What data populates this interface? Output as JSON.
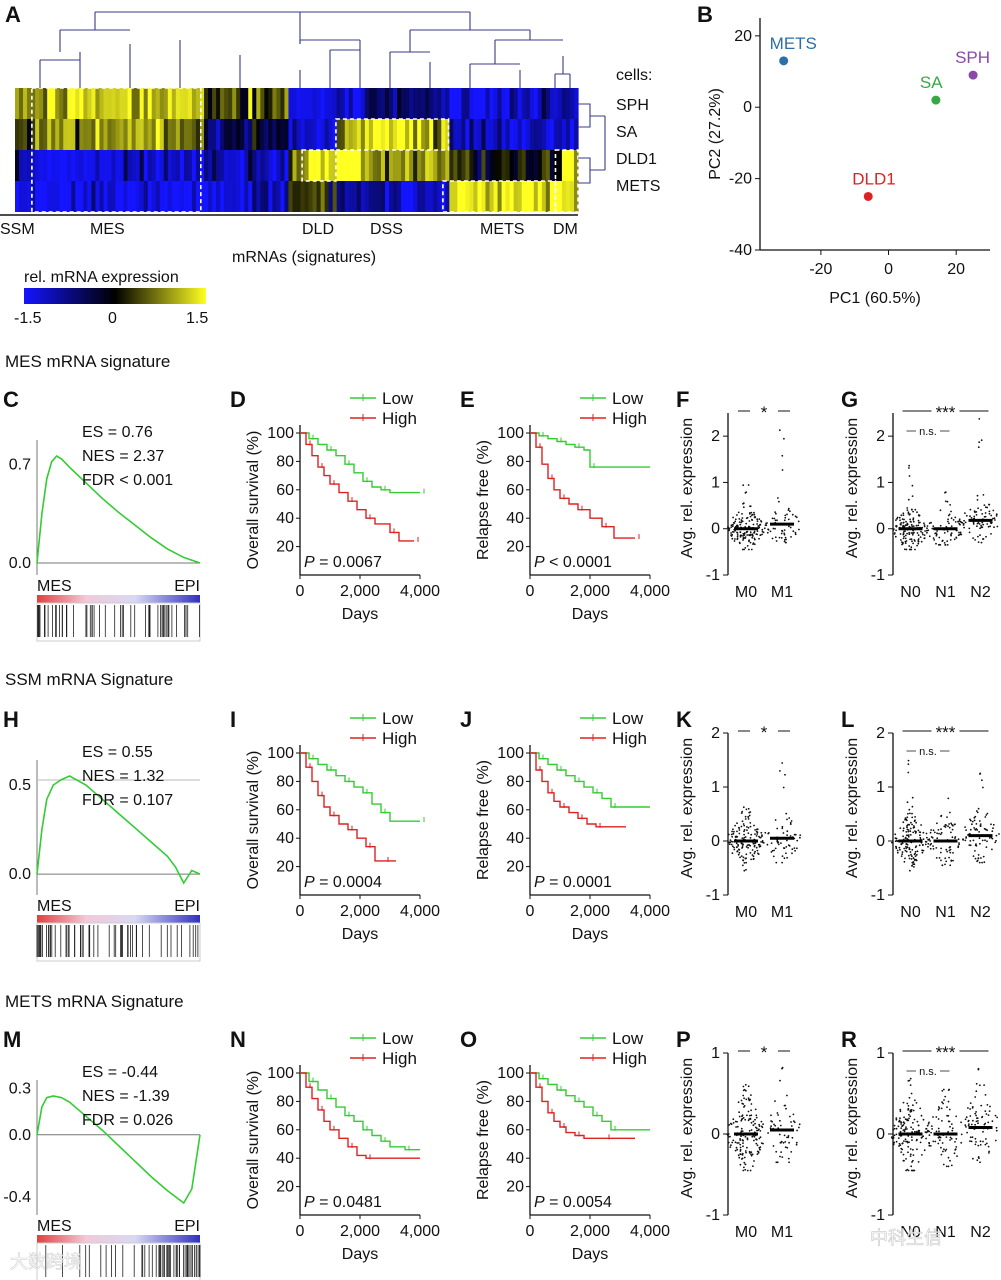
{
  "colors": {
    "low": "#33cc33",
    "high": "#dd2222",
    "heat_low": "#1414ff",
    "heat_mid": "#000000",
    "heat_high": "#ffff22",
    "dendro": "#3a3a8a"
  },
  "watermarks": [
    "大数跨境",
    "中科生信"
  ],
  "section_titles": [
    "MES mRNA signature",
    "SSM mRNA Signature",
    "METS mRNA Signature"
  ],
  "panel_a": {
    "letter": "A",
    "cells_label": "cells:",
    "rows": [
      "SPH",
      "SA",
      "DLD1",
      "METS"
    ],
    "signatures": [
      "SSM",
      "MES",
      "DLD",
      "DSS",
      "METS",
      "DM"
    ],
    "xlabel": "mRNAs (signatures)",
    "colorbar_title": "rel. mRNA expression",
    "colorbar_ticks": [
      "-1.5",
      "0",
      "1.5"
    ]
  },
  "panel_b": {
    "letter": "B",
    "chart_data": {
      "type": "scatter",
      "xlabel": "PC1 (60.5%)",
      "ylabel": "PC2 (27.2%)",
      "xlim": [
        -38,
        30
      ],
      "ylim": [
        -40,
        25
      ],
      "xticks": [
        "-20",
        "0",
        "20"
      ],
      "yticks": [
        "20",
        "0",
        "-20",
        "-40"
      ],
      "points": [
        {
          "label": "METS",
          "x": -31,
          "y": 13,
          "color": "#2a6fa8"
        },
        {
          "label": "SPH",
          "x": 25,
          "y": 9,
          "color": "#8a4aa8"
        },
        {
          "label": "SA",
          "x": 14,
          "y": 2,
          "color": "#33aa44"
        },
        {
          "label": "DLD1",
          "x": -6,
          "y": -25,
          "color": "#dd2222"
        }
      ]
    }
  },
  "gsea_panels": [
    {
      "letter": "C",
      "stats": [
        "ES = 0.76",
        "NES = 2.37",
        "FDR < 0.001"
      ],
      "yticks": [
        "0.7",
        "0.0"
      ],
      "left_label": "MES",
      "right_label": "EPI",
      "chart_data": {
        "type": "line",
        "x": [
          0,
          0.03,
          0.06,
          0.09,
          0.12,
          0.15,
          0.2,
          0.3,
          0.4,
          0.5,
          0.6,
          0.7,
          0.8,
          0.9,
          1.0
        ],
        "y": [
          0,
          0.35,
          0.6,
          0.72,
          0.76,
          0.74,
          0.68,
          0.57,
          0.46,
          0.36,
          0.27,
          0.18,
          0.1,
          0.04,
          0
        ]
      }
    },
    {
      "letter": "H",
      "stats": [
        "ES = 0.55",
        "NES = 1.32",
        "FDR = 0.107"
      ],
      "yticks": [
        "0.5",
        "0.0"
      ],
      "left_label": "MES",
      "right_label": "EPI",
      "chart_data": {
        "type": "line",
        "x": [
          0,
          0.03,
          0.06,
          0.1,
          0.15,
          0.2,
          0.3,
          0.4,
          0.5,
          0.6,
          0.7,
          0.8,
          0.85,
          0.9,
          0.95,
          1.0
        ],
        "y": [
          0,
          0.25,
          0.42,
          0.5,
          0.53,
          0.55,
          0.5,
          0.42,
          0.34,
          0.26,
          0.18,
          0.1,
          0.04,
          -0.05,
          0.02,
          0
        ]
      }
    },
    {
      "letter": "M",
      "stats": [
        "ES = -0.44",
        "NES = -1.39",
        "FDR = 0.026"
      ],
      "yticks": [
        "0.3",
        "0.0",
        "-0.4"
      ],
      "left_label": "MES",
      "right_label": "EPI",
      "chart_data": {
        "type": "line",
        "x": [
          0,
          0.03,
          0.06,
          0.1,
          0.15,
          0.2,
          0.3,
          0.4,
          0.5,
          0.6,
          0.7,
          0.8,
          0.85,
          0.9,
          0.95,
          1.0
        ],
        "y": [
          0,
          0.18,
          0.24,
          0.25,
          0.24,
          0.21,
          0.12,
          0.03,
          -0.07,
          -0.17,
          -0.27,
          -0.36,
          -0.4,
          -0.44,
          -0.35,
          0
        ]
      }
    }
  ],
  "km_panels": [
    {
      "letter": "D",
      "ylabel": "Overall survival (%)",
      "pvalue": "0.0067",
      "p_op": "=",
      "chart_data": {
        "type": "line",
        "xlabel": "Days",
        "xlim": [
          0,
          4000
        ],
        "ylim": [
          0,
          100
        ],
        "xticks": [
          "0",
          "2,000",
          "4,000"
        ],
        "yticks": [
          "100",
          "80",
          "60",
          "40",
          "20"
        ],
        "series": [
          {
            "name": "Low",
            "x": [
              0,
              300,
              600,
              900,
              1200,
              1500,
              1800,
              2100,
              2400,
              2700,
              3000,
              4000
            ],
            "y": [
              100,
              96,
              92,
              88,
              84,
              78,
              72,
              66,
              62,
              60,
              58,
              58
            ]
          },
          {
            "name": "High",
            "x": [
              0,
              200,
              400,
              600,
              800,
              1000,
              1300,
              1600,
              1900,
              2200,
              2500,
              3000,
              3300,
              3800
            ],
            "y": [
              100,
              92,
              84,
              76,
              70,
              64,
              58,
              52,
              46,
              40,
              36,
              30,
              24,
              24
            ]
          }
        ]
      }
    },
    {
      "letter": "E",
      "ylabel": "Relapse free (%)",
      "pvalue": "0.0001",
      "p_op": "<",
      "chart_data": {
        "type": "line",
        "xlabel": "Days",
        "xlim": [
          0,
          4000
        ],
        "ylim": [
          0,
          100
        ],
        "xticks": [
          "0",
          "2,000",
          "4,000"
        ],
        "yticks": [
          "100",
          "80",
          "60",
          "40",
          "20"
        ],
        "series": [
          {
            "name": "Low",
            "x": [
              0,
              300,
              600,
              900,
              1200,
              1500,
              1800,
              2000,
              4000
            ],
            "y": [
              100,
              98,
              96,
              94,
              92,
              90,
              88,
              76,
              76
            ]
          },
          {
            "name": "High",
            "x": [
              0,
              200,
              400,
              600,
              800,
              1000,
              1300,
              1600,
              2000,
              2400,
              2800,
              3500
            ],
            "y": [
              100,
              90,
              78,
              68,
              60,
              54,
              50,
              46,
              40,
              34,
              26,
              26
            ]
          }
        ]
      }
    },
    {
      "letter": "I",
      "ylabel": "Overall survival (%)",
      "pvalue": "0.0004",
      "p_op": "=",
      "chart_data": {
        "type": "line",
        "xlabel": "Days",
        "xlim": [
          0,
          4000
        ],
        "ylim": [
          0,
          100
        ],
        "xticks": [
          "0",
          "2,000",
          "4,000"
        ],
        "yticks": [
          "100",
          "80",
          "60",
          "40",
          "20"
        ],
        "series": [
          {
            "name": "Low",
            "x": [
              0,
              300,
              600,
              900,
              1200,
              1500,
              1800,
              2100,
              2400,
              2700,
              3000,
              4000
            ],
            "y": [
              100,
              96,
              92,
              88,
              84,
              80,
              76,
              72,
              64,
              58,
              52,
              52
            ]
          },
          {
            "name": "High",
            "x": [
              0,
              200,
              400,
              600,
              800,
              1000,
              1300,
              1600,
              1900,
              2200,
              2500,
              2800,
              3200
            ],
            "y": [
              100,
              90,
              80,
              70,
              62,
              56,
              50,
              46,
              40,
              34,
              24,
              24,
              24
            ]
          }
        ]
      }
    },
    {
      "letter": "J",
      "ylabel": "Relapse free (%)",
      "pvalue": "0.0001",
      "p_op": "=",
      "chart_data": {
        "type": "line",
        "xlabel": "Days",
        "xlim": [
          0,
          4000
        ],
        "ylim": [
          0,
          100
        ],
        "xticks": [
          "0",
          "2,000",
          "4,000"
        ],
        "yticks": [
          "100",
          "80",
          "60",
          "40",
          "20"
        ],
        "series": [
          {
            "name": "Low",
            "x": [
              0,
              300,
              600,
              900,
              1200,
              1500,
              1800,
              2100,
              2400,
              2700,
              4000
            ],
            "y": [
              100,
              96,
              92,
              88,
              84,
              80,
              76,
              72,
              68,
              62,
              62
            ]
          },
          {
            "name": "High",
            "x": [
              0,
              200,
              400,
              600,
              800,
              1000,
              1300,
              1600,
              1900,
              2200,
              3200
            ],
            "y": [
              100,
              88,
              80,
              72,
              66,
              62,
              58,
              54,
              50,
              48,
              48
            ]
          }
        ]
      }
    },
    {
      "letter": "N",
      "ylabel": "Overall survival (%)",
      "pvalue": "0.0481",
      "p_op": "=",
      "chart_data": {
        "type": "line",
        "xlabel": "Days",
        "xlim": [
          0,
          4000
        ],
        "ylim": [
          0,
          100
        ],
        "xticks": [
          "0",
          "2,000",
          "4,000"
        ],
        "yticks": [
          "100",
          "80",
          "60",
          "40",
          "20"
        ],
        "series": [
          {
            "name": "Low",
            "x": [
              0,
              300,
              600,
              900,
              1200,
              1500,
              1800,
              2100,
              2400,
              2700,
              3000,
              3500,
              4000
            ],
            "y": [
              100,
              94,
              88,
              82,
              76,
              70,
              66,
              60,
              56,
              52,
              48,
              46,
              46
            ]
          },
          {
            "name": "High",
            "x": [
              0,
              200,
              400,
              600,
              800,
              1000,
              1300,
              1600,
              1900,
              2200,
              4000
            ],
            "y": [
              100,
              90,
              82,
              74,
              66,
              60,
              54,
              48,
              42,
              40,
              40
            ]
          }
        ]
      }
    },
    {
      "letter": "O",
      "ylabel": "Relapse free (%)",
      "pvalue": "0.0054",
      "p_op": "=",
      "chart_data": {
        "type": "line",
        "xlabel": "Days",
        "xlim": [
          0,
          4000
        ],
        "ylim": [
          0,
          100
        ],
        "xticks": [
          "0",
          "2,000",
          "4,000"
        ],
        "yticks": [
          "100",
          "80",
          "60",
          "40",
          "20"
        ],
        "series": [
          {
            "name": "Low",
            "x": [
              0,
              300,
              600,
              900,
              1200,
              1500,
              1800,
              2100,
              2400,
              2700,
              4000
            ],
            "y": [
              100,
              96,
              92,
              88,
              84,
              80,
              76,
              70,
              66,
              60,
              60
            ]
          },
          {
            "name": "High",
            "x": [
              0,
              200,
              400,
              600,
              800,
              1000,
              1200,
              1500,
              1800,
              2500,
              3500
            ],
            "y": [
              100,
              90,
              80,
              72,
              66,
              62,
              58,
              56,
              54,
              54,
              54
            ]
          }
        ]
      }
    }
  ],
  "dot_panels": [
    {
      "letter": "F",
      "ylabel": "Avg. rel. expression",
      "groups": [
        "M0",
        "M1"
      ],
      "sig": "*",
      "ns": "",
      "ylim": [
        -1,
        2.5
      ],
      "yticks": [
        "2",
        "1",
        "0",
        "-1"
      ],
      "chart_data": {
        "type": "scatter",
        "medians": [
          0,
          0.1
        ],
        "ranges": [
          [
            -0.45,
            1.3
          ],
          [
            -0.3,
            2.4
          ]
        ],
        "n": [
          160,
          60
        ]
      }
    },
    {
      "letter": "G",
      "ylabel": "Avg. rel. expression",
      "groups": [
        "N0",
        "N1",
        "N2"
      ],
      "sig": "***",
      "ns": "n.s.",
      "ylim": [
        -1,
        2.5
      ],
      "yticks": [
        "2",
        "1",
        "0",
        "-1"
      ],
      "chart_data": {
        "type": "scatter",
        "medians": [
          0,
          0,
          0.18
        ],
        "ranges": [
          [
            -0.45,
            1.6
          ],
          [
            -0.35,
            1.0
          ],
          [
            -0.3,
            2.4
          ]
        ],
        "n": [
          150,
          80,
          80
        ]
      }
    },
    {
      "letter": "K",
      "ylabel": "Avg. rel. expression",
      "groups": [
        "M0",
        "M1"
      ],
      "sig": "*",
      "ns": "",
      "ylim": [
        -1,
        2
      ],
      "yticks": [
        "2",
        "1",
        "0",
        "-1"
      ],
      "chart_data": {
        "type": "scatter",
        "medians": [
          0,
          0.05
        ],
        "ranges": [
          [
            -0.55,
            0.7
          ],
          [
            -0.4,
            1.7
          ]
        ],
        "n": [
          160,
          60
        ]
      }
    },
    {
      "letter": "L",
      "ylabel": "Avg. rel. expression",
      "groups": [
        "N0",
        "N1",
        "N2"
      ],
      "sig": "***",
      "ns": "n.s.",
      "ylim": [
        -1,
        2
      ],
      "yticks": [
        "2",
        "1",
        "0",
        "-1"
      ],
      "chart_data": {
        "type": "scatter",
        "medians": [
          0,
          0,
          0.1
        ],
        "ranges": [
          [
            -0.55,
            1.5
          ],
          [
            -0.45,
            0.85
          ],
          [
            -0.4,
            1.7
          ]
        ],
        "n": [
          150,
          80,
          80
        ]
      }
    },
    {
      "letter": "P",
      "ylabel": "Avg. rel. expression",
      "groups": [
        "M0",
        "M1"
      ],
      "sig": "*",
      "ns": "",
      "ylim": [
        -1,
        1
      ],
      "yticks": [
        "1",
        "0",
        "-1"
      ],
      "chart_data": {
        "type": "scatter",
        "medians": [
          0,
          0.05
        ],
        "ranges": [
          [
            -0.45,
            0.65
          ],
          [
            -0.35,
            0.85
          ]
        ],
        "n": [
          160,
          60
        ]
      }
    },
    {
      "letter": "R",
      "ylabel": "Avg. rel. expression",
      "groups": [
        "N0",
        "N1",
        "N2"
      ],
      "sig": "***",
      "ns": "n.s.",
      "ylim": [
        -1,
        1
      ],
      "yticks": [
        "1",
        "0",
        "-1"
      ],
      "chart_data": {
        "type": "scatter",
        "medians": [
          0,
          0,
          0.08
        ],
        "ranges": [
          [
            -0.45,
            0.75
          ],
          [
            -0.4,
            0.55
          ],
          [
            -0.35,
            0.85
          ]
        ],
        "n": [
          150,
          80,
          80
        ]
      }
    }
  ]
}
